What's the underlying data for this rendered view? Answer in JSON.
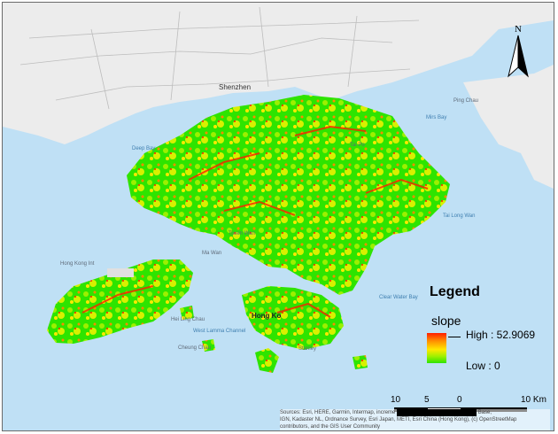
{
  "map": {
    "city_label": "Shenzhen",
    "hk_label": "Hong Ko",
    "places": [
      {
        "id": "deep-bay",
        "text": "Deep Bay",
        "water": true
      },
      {
        "id": "mirs-bay",
        "text": "Mirs Bay",
        "water": true
      },
      {
        "id": "tai-long-wan",
        "text": "Tai Long Wan",
        "water": true
      },
      {
        "id": "ping-chau",
        "text": "Ping Chau",
        "water": false
      },
      {
        "id": "hong-kong-intl",
        "text": "Hong Kong Int",
        "water": false
      },
      {
        "id": "west-lamma",
        "text": "West Lamma Channel",
        "water": true
      },
      {
        "id": "lantau",
        "text": "Ma Wan",
        "water": false
      },
      {
        "id": "cheung-chau",
        "text": "Cheung Chau",
        "water": false
      },
      {
        "id": "hei-ling-chau",
        "text": "Hei Ling Chau",
        "water": false
      },
      {
        "id": "stanley",
        "text": "Stanley",
        "water": false
      },
      {
        "id": "clear-water-bay",
        "text": "Clear Water Bay",
        "water": true
      },
      {
        "id": "tsuen-wan",
        "text": "Tsuen Wan",
        "water": false
      },
      {
        "id": "tai-po",
        "text": "Tai Po",
        "water": false
      }
    ],
    "colors": {
      "water": "#bfe0f5",
      "land": "#ececec",
      "slope_low": "#2ee400",
      "slope_high": "#ff1e00"
    }
  },
  "legend": {
    "title": "Legend",
    "layer": "slope",
    "high_label": "High : 52.9069",
    "low_label": "Low : 0"
  },
  "north_arrow": {
    "label": "N"
  },
  "scalebar": {
    "labels": [
      "10",
      "5",
      "0",
      "10 Km"
    ]
  },
  "attribution": {
    "line1": "Sources: Esri, HERE, Garmin, Intermap, increme",
    "line1_end": "Base,",
    "line2": "IGN, Kadaster NL, Ordnance Survey, Esri Japan, METI, Esri China (Hong Kong), (c) OpenStreetMap",
    "line3": "contributors, and the GIS User Community"
  }
}
